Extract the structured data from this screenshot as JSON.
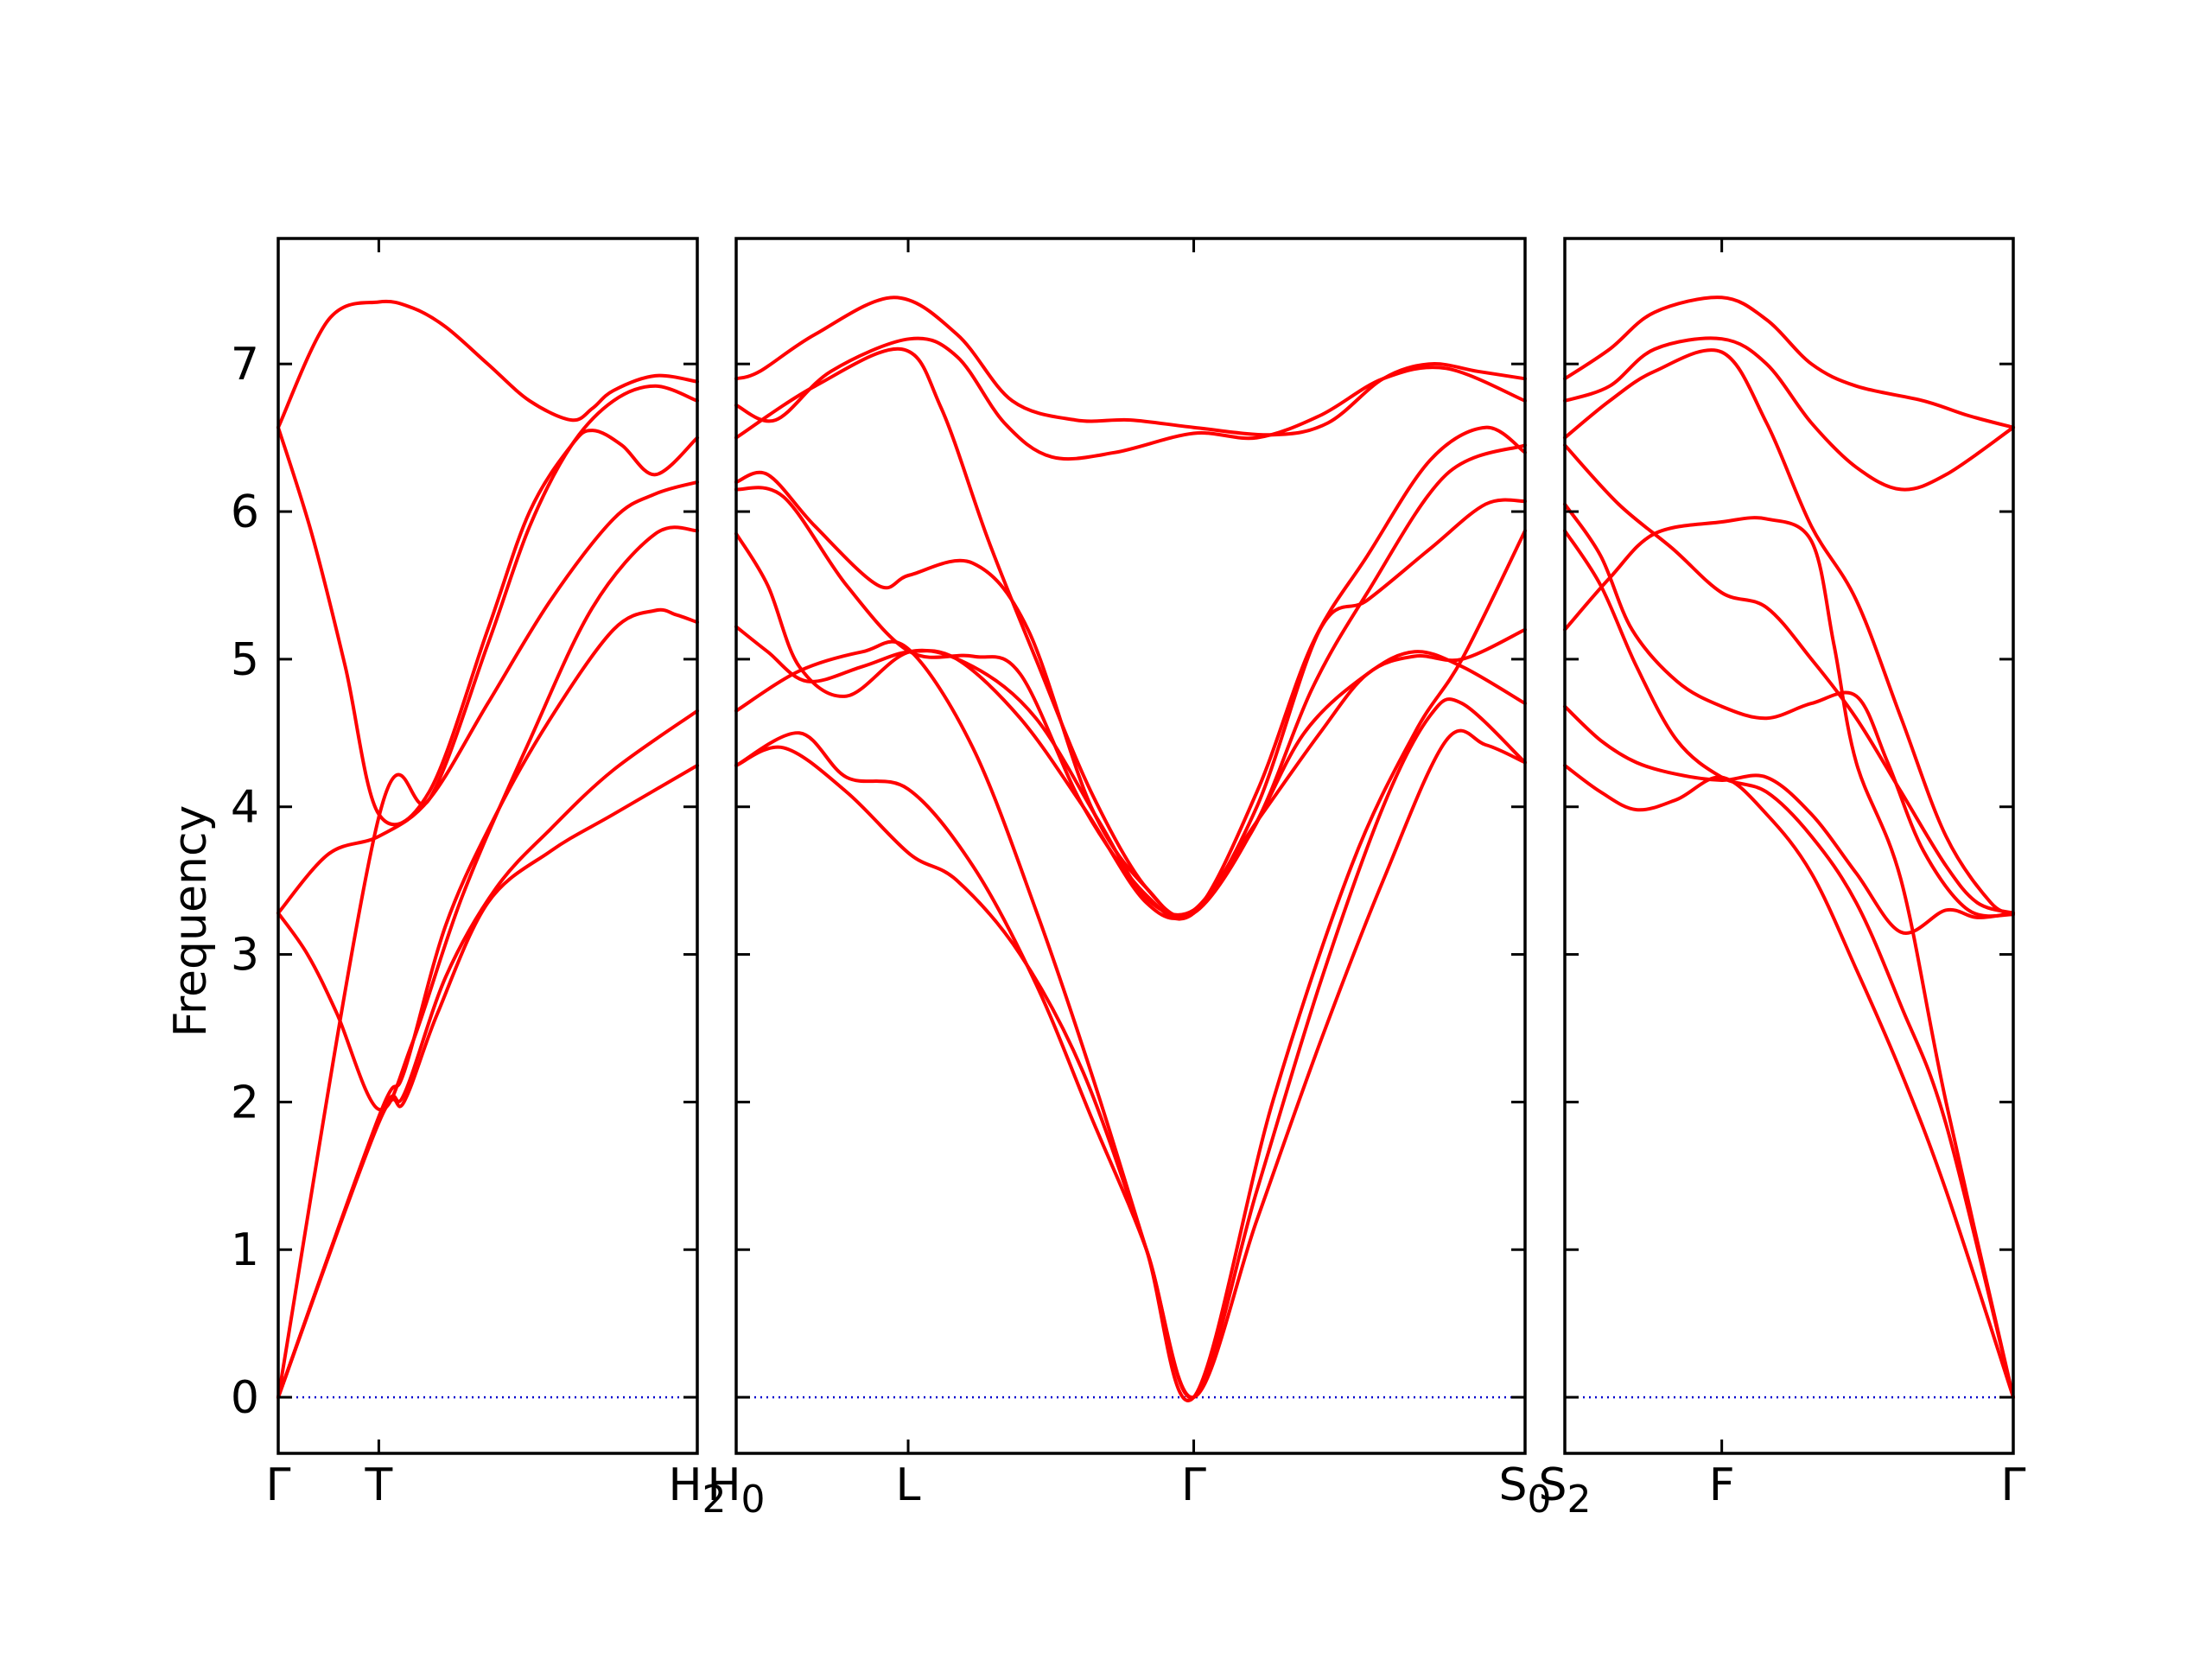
{
  "chart_data": {
    "type": "line",
    "ylabel": "Frequency",
    "xlabel": "",
    "ylim": [
      -0.38,
      7.85
    ],
    "yticks": [
      0,
      1,
      2,
      3,
      4,
      5,
      6,
      7
    ],
    "band_color": "#ff0000",
    "zero_line_color": "#0000cc",
    "panels": [
      {
        "xticks": [
          {
            "x": 0.0,
            "label": "Γ",
            "sub": ""
          },
          {
            "x": 0.24,
            "label": "T",
            "sub": ""
          },
          {
            "x": 1.0,
            "label": "H",
            "sub": "2"
          }
        ],
        "series": [
          {
            "x": [
              0,
              0.12,
              0.24,
              0.32,
              0.4,
              0.5,
              0.6,
              0.7,
              0.75,
              0.8,
              0.9,
              1.0
            ],
            "y": [
              6.57,
              7.3,
              7.42,
              7.38,
              7.25,
              7.0,
              6.75,
              6.62,
              6.7,
              6.82,
              6.92,
              6.88
            ]
          },
          {
            "x": [
              0,
              0.08,
              0.16,
              0.24,
              0.36,
              0.5,
              0.6,
              0.7,
              0.75,
              0.82,
              0.9,
              1.0
            ],
            "y": [
              6.57,
              5.85,
              4.95,
              3.95,
              4.1,
              5.2,
              6.0,
              6.45,
              6.55,
              6.45,
              6.25,
              6.5
            ]
          },
          {
            "x": [
              0,
              0.24,
              0.36,
              0.5,
              0.6,
              0.7,
              0.8,
              0.9,
              1.0
            ],
            "y": [
              0.0,
              3.93,
              4.05,
              5.1,
              5.9,
              6.45,
              6.75,
              6.85,
              6.75
            ]
          },
          {
            "x": [
              0,
              0.12,
              0.24,
              0.36,
              0.5,
              0.65,
              0.8,
              0.9,
              1.0
            ],
            "y": [
              3.28,
              3.68,
              3.8,
              4.05,
              4.7,
              5.4,
              5.95,
              6.12,
              6.2
            ]
          },
          {
            "x": [
              0,
              0.07,
              0.14,
              0.24,
              0.32,
              0.44,
              0.6,
              0.75,
              0.9,
              1.0
            ],
            "y": [
              3.28,
              3.0,
              2.6,
              1.95,
              2.4,
              3.4,
              4.45,
              5.35,
              5.85,
              5.87
            ]
          },
          {
            "x": [
              0,
              0.24,
              0.3,
              0.4,
              0.52,
              0.65,
              0.8,
              0.9,
              0.95,
              1.0
            ],
            "y": [
              0.0,
              1.9,
              2.2,
              3.2,
              3.95,
              4.6,
              5.2,
              5.33,
              5.3,
              5.25
            ]
          },
          {
            "x": [
              0,
              0.24,
              0.3,
              0.4,
              0.52,
              0.65,
              0.8,
              1.0
            ],
            "y": [
              0.0,
              1.88,
              2.05,
              2.85,
              3.45,
              3.85,
              4.25,
              4.65
            ]
          },
          {
            "x": [
              0,
              0.24,
              0.3,
              0.38,
              0.5,
              0.65,
              0.8,
              1.0
            ],
            "y": [
              0.0,
              1.86,
              2.0,
              2.6,
              3.35,
              3.7,
              3.95,
              4.28
            ]
          }
        ]
      },
      {
        "xticks": [
          {
            "x": 0.0,
            "label": "H",
            "sub": "0"
          },
          {
            "x": 0.218,
            "label": "L",
            "sub": ""
          },
          {
            "x": 0.58,
            "label": "Γ",
            "sub": ""
          },
          {
            "x": 1.0,
            "label": "S",
            "sub": "0"
          }
        ],
        "series": [
          {
            "x": [
              0,
              0.03,
              0.1,
              0.2,
              0.28,
              0.35,
              0.43,
              0.5,
              0.58,
              0.68,
              0.75,
              0.82,
              0.88,
              0.94,
              1.0
            ],
            "y": [
              6.9,
              6.95,
              7.2,
              7.45,
              7.2,
              6.75,
              6.62,
              6.62,
              6.57,
              6.52,
              6.6,
              6.9,
              7.0,
              6.95,
              6.9
            ]
          },
          {
            "x": [
              0,
              0.05,
              0.12,
              0.22,
              0.28,
              0.34,
              0.4,
              0.48,
              0.58,
              0.66,
              0.74,
              0.82,
              0.9,
              1.0
            ],
            "y": [
              6.72,
              6.62,
              6.95,
              7.17,
              7.05,
              6.6,
              6.37,
              6.4,
              6.53,
              6.5,
              6.65,
              6.9,
              6.97,
              6.75
            ]
          },
          {
            "x": [
              0,
              0.1,
              0.21,
              0.26,
              0.32,
              0.38,
              0.45,
              0.52,
              0.58,
              0.66,
              0.73,
              0.8,
              0.9,
              1.0
            ],
            "y": [
              6.5,
              6.85,
              7.1,
              6.7,
              5.8,
              5.0,
              4.1,
              3.45,
              3.28,
              3.9,
              4.8,
              5.45,
              6.25,
              6.45
            ]
          },
          {
            "x": [
              0,
              0.04,
              0.1,
              0.18,
              0.22,
              0.3,
              0.37,
              0.45,
              0.52,
              0.58,
              0.66,
              0.73,
              0.8,
              0.88,
              0.95,
              1.0
            ],
            "y": [
              6.2,
              6.25,
              5.9,
              5.5,
              5.57,
              5.65,
              5.2,
              4.0,
              3.45,
              3.28,
              4.1,
              5.1,
              5.7,
              6.35,
              6.57,
              6.4
            ]
          },
          {
            "x": [
              0,
              0.06,
              0.14,
              0.22,
              0.3,
              0.36,
              0.44,
              0.52,
              0.58,
              0.66,
              0.74,
              0.8,
              0.88,
              0.95,
              1.0
            ],
            "y": [
              6.15,
              6.1,
              5.5,
              5.05,
              5.02,
              4.9,
              4.0,
              3.4,
              3.28,
              4.0,
              5.2,
              5.4,
              5.75,
              6.05,
              6.07
            ]
          },
          {
            "x": [
              0,
              0.04,
              0.08,
              0.14,
              0.22,
              0.3,
              0.38,
              0.46,
              0.52,
              0.58,
              0.65,
              0.72,
              0.8,
              0.86,
              0.92,
              1.0
            ],
            "y": [
              5.85,
              5.5,
              4.95,
              4.75,
              5.05,
              4.95,
              4.6,
              3.9,
              3.38,
              3.3,
              3.8,
              4.5,
              4.9,
              5.05,
              4.95,
              4.7
            ]
          },
          {
            "x": [
              0,
              0.04,
              0.09,
              0.16,
              0.22,
              0.28,
              0.36,
              0.44,
              0.52,
              0.58,
              0.66,
              0.74,
              0.8,
              0.86,
              0.92,
              1.0
            ],
            "y": [
              5.22,
              5.05,
              4.85,
              4.95,
              5.05,
              5.0,
              4.6,
              4.0,
              3.35,
              3.3,
              3.9,
              4.5,
              4.9,
              5.02,
              5.0,
              5.2
            ]
          },
          {
            "x": [
              0,
              0.08,
              0.16,
              0.218,
              0.3,
              0.38,
              0.45,
              0.52,
              0.58,
              0.68,
              0.78,
              0.86,
              0.92,
              1.0
            ],
            "y": [
              4.65,
              4.92,
              5.05,
              5.07,
              4.4,
              3.3,
              2.2,
              1.0,
              0.0,
              2.0,
              3.6,
              4.5,
              5.0,
              5.87
            ]
          },
          {
            "x": [
              0,
              0.08,
              0.14,
              0.218,
              0.3,
              0.38,
              0.45,
              0.52,
              0.58,
              0.66,
              0.74,
              0.82,
              0.88,
              0.92,
              1.0
            ],
            "y": [
              4.28,
              4.5,
              4.2,
              4.12,
              3.6,
              2.8,
              1.9,
              1.0,
              0.0,
              1.4,
              2.8,
              4.0,
              4.62,
              4.7,
              4.3
            ]
          },
          {
            "x": [
              0,
              0.06,
              0.14,
              0.22,
              0.28,
              0.36,
              0.44,
              0.52,
              0.58,
              0.66,
              0.74,
              0.82,
              0.9,
              0.95,
              1.0
            ],
            "y": [
              4.28,
              4.4,
              4.1,
              3.68,
              3.5,
              3.0,
              2.2,
              1.0,
              0.0,
              1.2,
              2.4,
              3.5,
              4.45,
              4.42,
              4.3
            ]
          }
        ]
      },
      {
        "xticks": [
          {
            "x": 0.0,
            "label": "S",
            "sub": "2"
          },
          {
            "x": 0.35,
            "label": "F",
            "sub": ""
          },
          {
            "x": 1.0,
            "label": "Γ",
            "sub": ""
          }
        ],
        "series": [
          {
            "x": [
              0,
              0.1,
              0.2,
              0.35,
              0.45,
              0.55,
              0.65,
              0.8,
              0.9,
              1.0
            ],
            "y": [
              6.9,
              7.1,
              7.35,
              7.45,
              7.3,
              7.0,
              6.85,
              6.75,
              6.65,
              6.57
            ]
          },
          {
            "x": [
              0,
              0.1,
              0.2,
              0.35,
              0.45,
              0.55,
              0.65,
              0.75,
              0.85,
              1.0
            ],
            "y": [
              6.75,
              6.85,
              7.1,
              7.17,
              7.0,
              6.6,
              6.3,
              6.15,
              6.25,
              6.57
            ]
          },
          {
            "x": [
              0,
              0.1,
              0.2,
              0.35,
              0.45,
              0.55,
              0.65,
              0.75,
              0.85,
              0.95,
              1.0
            ],
            "y": [
              6.5,
              6.75,
              6.95,
              7.08,
              6.6,
              5.9,
              5.4,
              4.6,
              3.8,
              3.35,
              3.28
            ]
          },
          {
            "x": [
              0,
              0.12,
              0.24,
              0.35,
              0.45,
              0.55,
              0.65,
              0.75,
              0.85,
              0.92,
              1.0
            ],
            "y": [
              6.45,
              6.05,
              5.75,
              5.45,
              5.35,
              5.0,
              4.6,
              4.1,
              3.6,
              3.35,
              3.28
            ]
          },
          {
            "x": [
              0,
              0.1,
              0.2,
              0.35,
              0.45,
              0.55,
              0.6,
              0.65,
              0.75,
              0.85,
              1.0
            ],
            "y": [
              5.2,
              5.55,
              5.85,
              5.93,
              5.95,
              5.8,
              5.1,
              4.3,
              3.5,
              2.0,
              0.0
            ]
          },
          {
            "x": [
              0,
              0.08,
              0.15,
              0.25,
              0.35,
              0.45,
              0.55,
              0.65,
              0.72,
              0.8,
              0.9,
              1.0
            ],
            "y": [
              6.05,
              5.7,
              5.2,
              4.85,
              4.68,
              4.6,
              4.7,
              4.75,
              4.3,
              3.7,
              3.3,
              3.27
            ]
          },
          {
            "x": [
              0,
              0.08,
              0.16,
              0.25,
              0.35,
              0.45,
              0.55,
              0.65,
              0.75,
              0.85,
              1.0
            ],
            "y": [
              5.87,
              5.5,
              4.95,
              4.45,
              4.2,
              4.1,
              3.8,
              3.35,
              2.65,
              1.85,
              0.0
            ]
          },
          {
            "x": [
              0,
              0.08,
              0.16,
              0.25,
              0.35,
              0.45,
              0.55,
              0.65,
              0.75,
              0.85,
              0.92,
              1.0
            ],
            "y": [
              4.68,
              4.45,
              4.3,
              4.22,
              4.18,
              4.2,
              3.95,
              3.55,
              3.15,
              3.3,
              3.25,
              3.28
            ]
          },
          {
            "x": [
              0,
              0.08,
              0.16,
              0.25,
              0.35,
              0.45,
              0.55,
              0.65,
              0.75,
              0.85,
              1.0
            ],
            "y": [
              4.28,
              4.1,
              3.98,
              4.05,
              4.2,
              3.95,
              3.55,
              2.9,
              2.2,
              1.4,
              0.0
            ]
          }
        ]
      }
    ]
  }
}
